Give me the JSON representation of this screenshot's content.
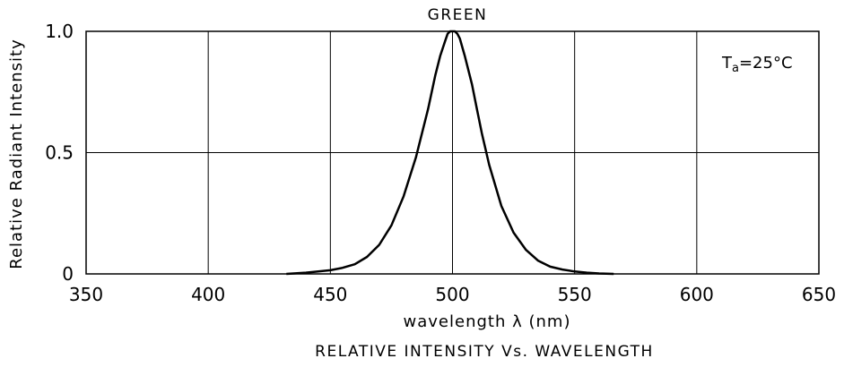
{
  "chart_data": {
    "type": "line",
    "title": "GREEN",
    "xlabel": "wavelength λ (nm)",
    "ylabel": "Relative Radiant Intensity",
    "caption": "RELATIVE INTENSITY Vs. WAVELENGTH",
    "annotation": {
      "prefix": "T",
      "subscript": "a",
      "suffix": "=25°C"
    },
    "xlim": [
      350,
      650
    ],
    "ylim": [
      0,
      1.0
    ],
    "xticks": [
      350,
      400,
      450,
      500,
      550,
      600,
      650
    ],
    "xtick_labels": [
      "350",
      "400",
      "450",
      "500",
      "550",
      "600",
      "650"
    ],
    "yticks": [
      0,
      0.5,
      1.0
    ],
    "ytick_labels": [
      "0",
      "0.5",
      "1.0"
    ],
    "grid": true,
    "series": [
      {
        "color": "#000000",
        "x": [
          432,
          440,
          445,
          450,
          455,
          460,
          465,
          470,
          475,
          480,
          485,
          490,
          493,
          495,
          497,
          498,
          499,
          500,
          501,
          502,
          503,
          505,
          508,
          510,
          512,
          515,
          520,
          525,
          530,
          535,
          540,
          545,
          550,
          555,
          560,
          566
        ],
        "y": [
          0.0,
          0.005,
          0.01,
          0.015,
          0.025,
          0.04,
          0.07,
          0.12,
          0.2,
          0.32,
          0.48,
          0.68,
          0.82,
          0.9,
          0.96,
          0.99,
          1.0,
          1.0,
          1.0,
          0.99,
          0.97,
          0.9,
          0.78,
          0.68,
          0.58,
          0.45,
          0.28,
          0.17,
          0.1,
          0.055,
          0.03,
          0.018,
          0.01,
          0.005,
          0.002,
          0.0
        ]
      }
    ]
  }
}
